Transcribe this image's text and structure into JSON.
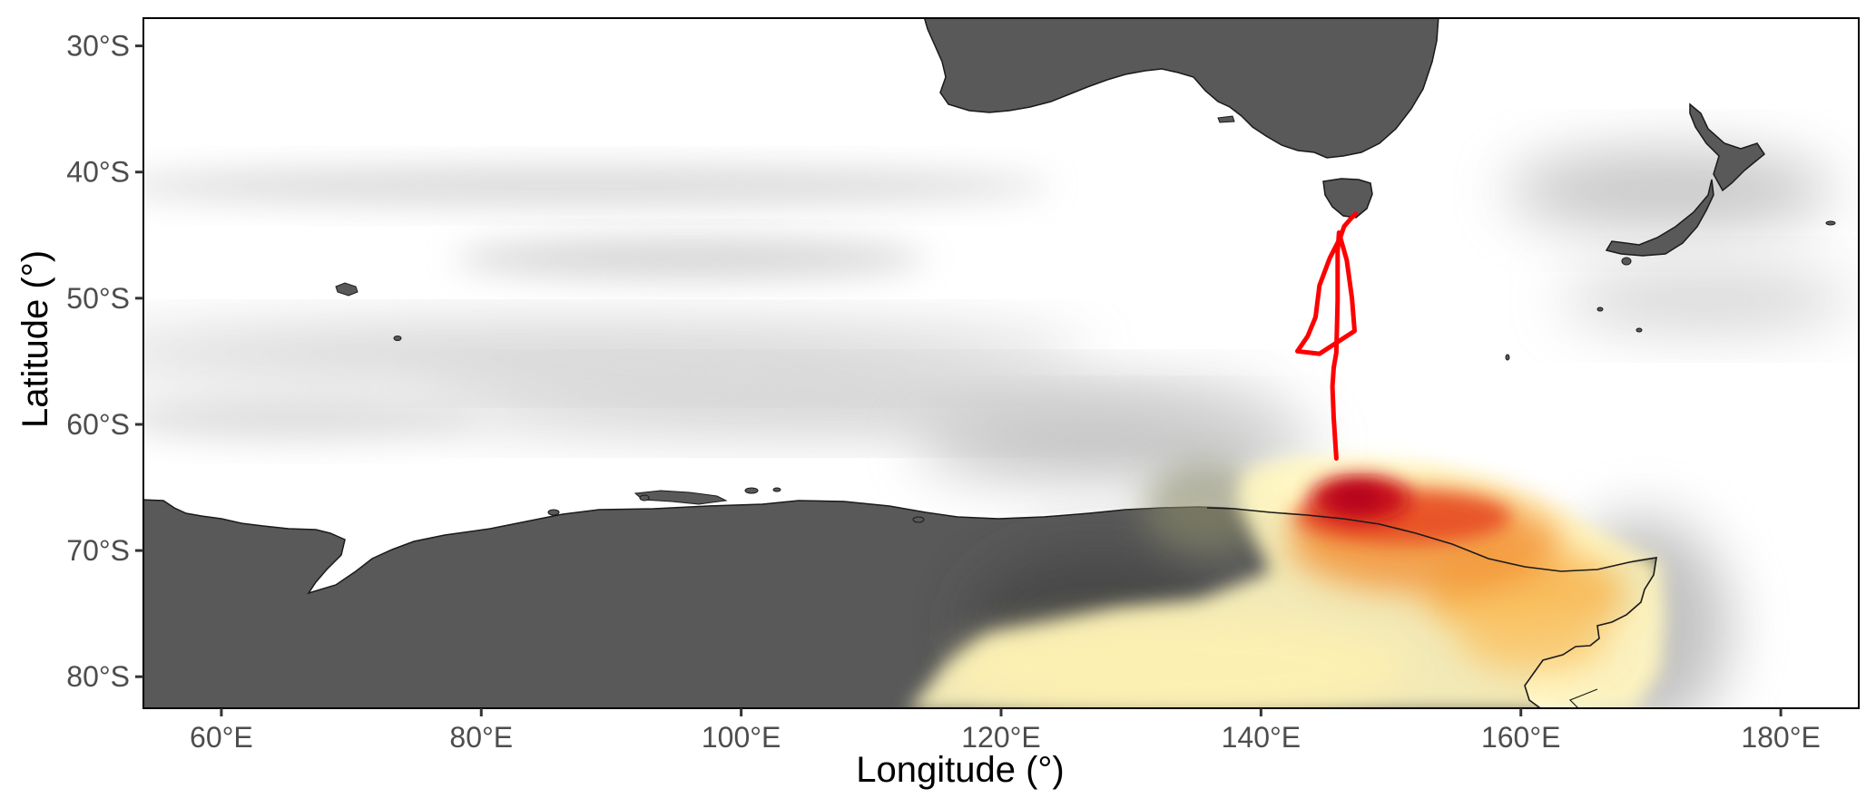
{
  "map": {
    "x_axis": {
      "title": "Longitude (°)",
      "range": [
        54,
        186
      ],
      "ticks": [
        {
          "value": 60,
          "label": "60°E"
        },
        {
          "value": 80,
          "label": "80°E"
        },
        {
          "value": 100,
          "label": "100°E"
        },
        {
          "value": 120,
          "label": "120°E"
        },
        {
          "value": 140,
          "label": "140°E"
        },
        {
          "value": 160,
          "label": "160°E"
        },
        {
          "value": 180,
          "label": "180°E"
        }
      ]
    },
    "y_axis": {
      "title": "Latitude (°)",
      "range": [
        -82.5,
        -27.8
      ],
      "ticks": [
        {
          "value": -30,
          "label": "30°S"
        },
        {
          "value": -40,
          "label": "40°S"
        },
        {
          "value": -50,
          "label": "50°S"
        },
        {
          "value": -60,
          "label": "60°S"
        },
        {
          "value": -70,
          "label": "70°S"
        },
        {
          "value": -80,
          "label": "80°S"
        }
      ]
    },
    "colors": {
      "land": "#595959",
      "ocean": "#ffffff",
      "track": "#ff0000",
      "hotspot_core": "#d40c12",
      "hotspot_mid": "#f07020",
      "hotspot_outer": "#fff3b8",
      "background_density": "#9e9e9e"
    },
    "track_lonlat": [
      [
        147.3,
        -43.3
      ],
      [
        146.9,
        -43.7
      ],
      [
        146.4,
        -44.3
      ],
      [
        146.1,
        -45.2
      ],
      [
        145.3,
        -46.8
      ],
      [
        144.5,
        -49.0
      ],
      [
        144.2,
        -51.5
      ],
      [
        143.6,
        -53.0
      ],
      [
        142.8,
        -54.2
      ],
      [
        144.5,
        -54.4
      ],
      [
        147.2,
        -52.6
      ],
      [
        147.0,
        -50.0
      ],
      [
        146.6,
        -47.0
      ],
      [
        146.0,
        -44.8
      ],
      [
        145.9,
        -46.3
      ],
      [
        145.9,
        -50.2
      ],
      [
        145.8,
        -54.3
      ],
      [
        145.6,
        -55.5
      ],
      [
        145.5,
        -57.0
      ],
      [
        145.6,
        -59.5
      ],
      [
        145.8,
        -62.7
      ]
    ]
  }
}
